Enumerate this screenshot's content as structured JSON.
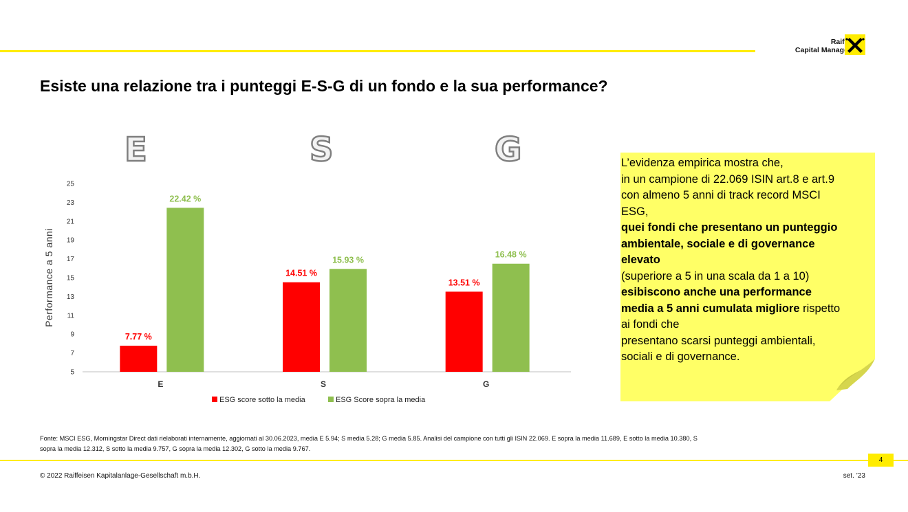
{
  "brand": {
    "line1": "Raiffeisen",
    "line2": "Capital Management"
  },
  "title": "Esiste una relazione tra i punteggi E-S-G di un fondo e la sua performance?",
  "big_letters": [
    "E",
    "S",
    "G"
  ],
  "chart_data": {
    "type": "bar",
    "categories": [
      "E",
      "S",
      "G"
    ],
    "series": [
      {
        "name": "ESG score sotto la media",
        "color": "#ff0000",
        "values": [
          7.77,
          14.51,
          13.51
        ],
        "labels": [
          "7.77 %",
          "14.51 %",
          "13.51 %"
        ]
      },
      {
        "name": "ESG Score sopra la media",
        "color": "#8fbf4f",
        "values": [
          22.42,
          15.93,
          16.48
        ],
        "labels": [
          "22.42 %",
          "15.93 %",
          "16.48 %"
        ]
      }
    ],
    "ylabel": "Performance a 5 anni",
    "ylim": [
      5,
      25
    ],
    "yticks": [
      "5",
      "7",
      "9",
      "11",
      "13",
      "15",
      "17",
      "19",
      "21",
      "23",
      "25"
    ],
    "legend": "bottom",
    "grid": false
  },
  "note": {
    "lines": [
      {
        "text": "L’evidenza empirica mostra che,",
        "bold": false
      },
      {
        "text": "in un campione di 22.069 ISIN art.8 e art.9",
        "bold": false
      },
      {
        "text": "con almeno 5 anni di track record MSCI",
        "bold": false
      },
      {
        "text": "ESG,",
        "bold": false
      },
      {
        "text": "quei fondi che presentano un punteggio",
        "bold": true
      },
      {
        "text": "ambientale, sociale e di governance",
        "bold": true
      },
      {
        "text": "elevato",
        "bold": true
      },
      {
        "text": "(superiore a 5 in una scala da 1 a 10)",
        "bold": false
      },
      {
        "text": "esibiscono anche una performance",
        "bold": true
      }
    ],
    "line10_bold": "media a 5 anni cumulata migliore",
    "line10_rest": " rispetto",
    "tail": [
      "ai fondi che",
      "presentano scarsi punteggi ambientali,",
      "sociali e di governance."
    ]
  },
  "source": {
    "line1": "Fonte: MSCI ESG, Morningstar Direct dati rielaborati internamente, aggiornati al 30.06.2023, media  E 5.94; S media 5.28; G media 5.85. Analisi del campione con tutti gli ISIN 22.069. E sopra la media 11.689, E sotto la media 10.380, S",
    "line2": "sopra la media 12.312, S sotto la media 9.757, G sopra la media 12.302, G sotto la media 9.767."
  },
  "footer": {
    "page": "4",
    "copyright": "© 2022 Raiffeisen Kapitalanlage-Gesellschaft m.b.H.",
    "date": "set. ’23"
  },
  "colors": {
    "accent_yellow": "#ffec00",
    "note_yellow": "#ffff66"
  }
}
